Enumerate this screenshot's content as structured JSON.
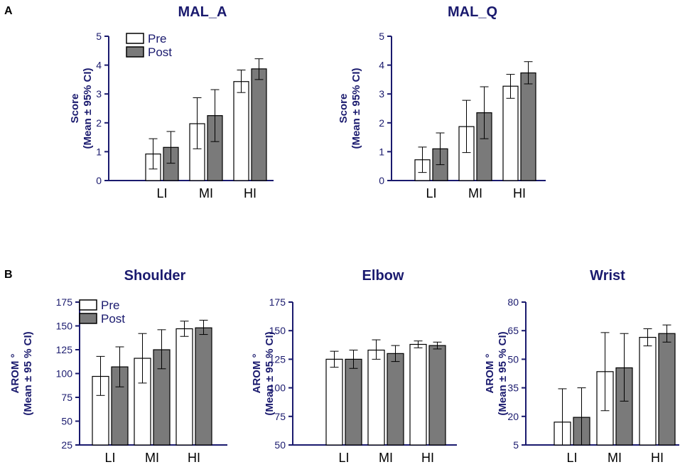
{
  "panel_labels": [
    "A",
    "B"
  ],
  "chart_data": [
    {
      "type": "bar",
      "title": "MAL_A",
      "ylabel": "Score",
      "ylabel2": "(Mean ± 95% CI)",
      "categories": [
        "LI",
        "MI",
        "HI"
      ],
      "ylim": [
        0,
        5
      ],
      "yticks": [
        0,
        1,
        2,
        3,
        4,
        5
      ],
      "legend": true,
      "series": [
        {
          "name": "Pre",
          "fill": "#ffffff",
          "values": [
            0.92,
            1.97,
            3.43
          ],
          "ci_low": [
            0.4,
            1.1,
            3.05
          ],
          "ci_high": [
            1.45,
            2.87,
            3.83
          ]
        },
        {
          "name": "Post",
          "fill": "#7a7a7a",
          "values": [
            1.15,
            2.25,
            3.87
          ],
          "ci_low": [
            0.6,
            1.35,
            3.5
          ],
          "ci_high": [
            1.7,
            3.15,
            4.22
          ]
        }
      ]
    },
    {
      "type": "bar",
      "title": "MAL_Q",
      "ylabel": "Score",
      "ylabel2": "(Mean ± 95% CI)",
      "categories": [
        "LI",
        "MI",
        "HI"
      ],
      "ylim": [
        0,
        5
      ],
      "yticks": [
        0,
        1,
        2,
        3,
        4,
        5
      ],
      "legend": false,
      "series": [
        {
          "name": "Pre",
          "fill": "#ffffff",
          "values": [
            0.72,
            1.87,
            3.27
          ],
          "ci_low": [
            0.28,
            0.97,
            2.85
          ],
          "ci_high": [
            1.16,
            2.78,
            3.68
          ]
        },
        {
          "name": "Post",
          "fill": "#7a7a7a",
          "values": [
            1.1,
            2.35,
            3.73
          ],
          "ci_low": [
            0.55,
            1.45,
            3.35
          ],
          "ci_high": [
            1.65,
            3.25,
            4.12
          ]
        }
      ]
    },
    {
      "type": "bar",
      "title": "Shoulder",
      "ylabel": "AROM °",
      "ylabel2": "(Mean ± 95 % CI)",
      "categories": [
        "LI",
        "MI",
        "HI"
      ],
      "ylim": [
        25,
        175
      ],
      "yticks": [
        25,
        50,
        75,
        100,
        125,
        150,
        175
      ],
      "legend": true,
      "series": [
        {
          "name": "Pre",
          "fill": "#ffffff",
          "values": [
            97,
            116,
            147
          ],
          "ci_low": [
            77,
            90,
            139
          ],
          "ci_high": [
            118,
            142,
            155
          ]
        },
        {
          "name": "Post",
          "fill": "#7a7a7a",
          "values": [
            107,
            125,
            148
          ],
          "ci_low": [
            86,
            105,
            141
          ],
          "ci_high": [
            128,
            146,
            156
          ]
        }
      ]
    },
    {
      "type": "bar",
      "title": "Elbow",
      "ylabel": "AROM °",
      "ylabel2": "(Mean ± 95 % CI)",
      "categories": [
        "LI",
        "MI",
        "HI"
      ],
      "ylim": [
        50,
        175
      ],
      "yticks": [
        50,
        75,
        100,
        125,
        150,
        175
      ],
      "legend": false,
      "series": [
        {
          "name": "Pre",
          "fill": "#ffffff",
          "values": [
            125,
            133,
            138
          ],
          "ci_low": [
            118,
            125,
            135
          ],
          "ci_high": [
            132,
            142,
            141
          ]
        },
        {
          "name": "Post",
          "fill": "#7a7a7a",
          "values": [
            125,
            130,
            137
          ],
          "ci_low": [
            117,
            123,
            134
          ],
          "ci_high": [
            133,
            137,
            140
          ]
        }
      ]
    },
    {
      "type": "bar",
      "title": "Wrist",
      "ylabel": "AROM °",
      "ylabel2": "(Mean ± 95 % CI)",
      "categories": [
        "LI",
        "MI",
        "HI"
      ],
      "ylim": [
        5,
        80
      ],
      "yticks": [
        5,
        20,
        35,
        50,
        65,
        80
      ],
      "legend": false,
      "series": [
        {
          "name": "Pre",
          "fill": "#ffffff",
          "values": [
            17,
            43.5,
            61.5
          ],
          "ci_low": [
            5,
            23,
            57
          ],
          "ci_high": [
            34.5,
            64,
            66
          ]
        },
        {
          "name": "Post",
          "fill": "#7a7a7a",
          "values": [
            19.5,
            45.5,
            63.5
          ],
          "ci_low": [
            5,
            28,
            59
          ],
          "ci_high": [
            35,
            63.5,
            68
          ]
        }
      ]
    }
  ]
}
